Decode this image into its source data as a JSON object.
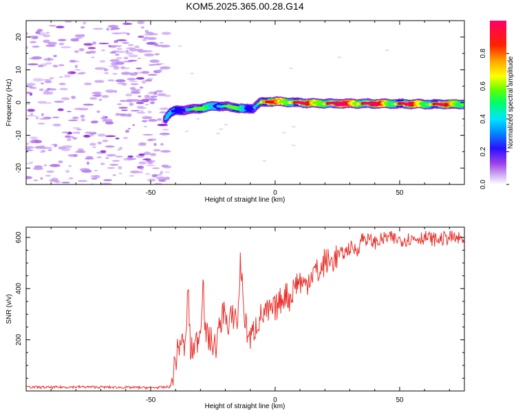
{
  "title": "KOM5.2025.365.00.28.G14",
  "chart_data": [
    {
      "type": "heatmap",
      "name": "spectrogram",
      "xlabel": "Height of straight line (km)",
      "ylabel": "Frequency (Hz)",
      "xlim": [
        -100,
        76
      ],
      "ylim": [
        -25,
        25
      ],
      "xticks": [
        -50,
        0,
        50
      ],
      "yticks": [
        -20,
        -10,
        0,
        10,
        20
      ],
      "colorbar": {
        "label": "Normalized spectral amplitude",
        "range": [
          0,
          1
        ],
        "ticks": [
          0.0,
          0.2,
          0.4,
          0.6,
          0.8
        ],
        "tick_labels": [
          "0.0",
          "0.2",
          "0.4",
          "0.6",
          "0.8"
        ],
        "colors": [
          "#ffffff",
          "#c9a0f0",
          "#8a2be2",
          "#1a00ff",
          "#00ccff",
          "#00ff66",
          "#66ff00",
          "#ffff00",
          "#ff9900",
          "#ff0000",
          "#ff0066"
        ]
      },
      "ridge_trace": [
        {
          "x": -44,
          "freq": -4.8,
          "amp": 0.3
        },
        {
          "x": -42,
          "freq": -3.0,
          "amp": 0.32
        },
        {
          "x": -40,
          "freq": -2.5,
          "amp": 0.35
        },
        {
          "x": -36,
          "freq": -2.2,
          "amp": 0.4
        },
        {
          "x": -32,
          "freq": -2.0,
          "amp": 0.42
        },
        {
          "x": -28,
          "freq": -1.5,
          "amp": 0.45
        },
        {
          "x": -24,
          "freq": -1.0,
          "amp": 0.48
        },
        {
          "x": -20,
          "freq": -1.2,
          "amp": 0.45
        },
        {
          "x": -16,
          "freq": -1.5,
          "amp": 0.42
        },
        {
          "x": -12,
          "freq": -2.0,
          "amp": 0.38
        },
        {
          "x": -9,
          "freq": -1.8,
          "amp": 0.4
        },
        {
          "x": -6,
          "freq": 0.0,
          "amp": 0.5
        },
        {
          "x": -2,
          "freq": 0.3,
          "amp": 0.65
        },
        {
          "x": 2,
          "freq": 0.3,
          "amp": 0.8
        },
        {
          "x": 8,
          "freq": 0.0,
          "amp": 0.75
        },
        {
          "x": 15,
          "freq": -0.2,
          "amp": 0.7
        },
        {
          "x": 20,
          "freq": -0.3,
          "amp": 0.85
        },
        {
          "x": 30,
          "freq": -0.3,
          "amp": 0.9
        },
        {
          "x": 40,
          "freq": -0.3,
          "amp": 0.8
        },
        {
          "x": 50,
          "freq": -0.4,
          "amp": 0.7
        },
        {
          "x": 60,
          "freq": -0.5,
          "amp": 0.75
        },
        {
          "x": 70,
          "freq": -0.5,
          "amp": 0.7
        },
        {
          "x": 76,
          "freq": -0.5,
          "amp": 0.7
        }
      ],
      "noise_region": {
        "x_range": [
          -100,
          -43
        ],
        "freq_range": [
          -25,
          25
        ],
        "amp": [
          0.02,
          0.15
        ]
      }
    },
    {
      "type": "line",
      "name": "snr",
      "xlabel": "Height of straight line (km)",
      "ylabel": "SNR (v/v)",
      "xlim": [
        -100,
        76
      ],
      "ylim": [
        0,
        640
      ],
      "xticks": [
        -50,
        0,
        50
      ],
      "yticks": [
        200,
        400,
        600
      ],
      "color": "#e8302a",
      "series": [
        {
          "name": "SNR",
          "x": [
            -100,
            -90,
            -80,
            -70,
            -60,
            -50,
            -45,
            -42,
            -40,
            -38,
            -36,
            -35,
            -34,
            -32,
            -30,
            -29,
            -28,
            -26,
            -24,
            -22,
            -20,
            -19,
            -18,
            -16,
            -15,
            -14,
            -12,
            -10,
            -8,
            -6,
            -4,
            -2,
            0,
            2,
            4,
            6,
            8,
            10,
            12,
            14,
            16,
            18,
            20,
            22,
            25,
            28,
            30,
            33,
            35,
            40,
            45,
            50,
            55,
            60,
            65,
            70,
            76
          ],
          "y": [
            15,
            14,
            16,
            15,
            14,
            13,
            14,
            17,
            120,
            200,
            160,
            420,
            150,
            180,
            240,
            450,
            220,
            200,
            170,
            260,
            340,
            210,
            280,
            300,
            260,
            510,
            260,
            200,
            250,
            290,
            300,
            310,
            320,
            350,
            380,
            360,
            420,
            430,
            410,
            450,
            470,
            460,
            510,
            500,
            530,
            540,
            560,
            550,
            600,
            580,
            600,
            590,
            595,
            600,
            590,
            600,
            590
          ]
        }
      ]
    }
  ]
}
